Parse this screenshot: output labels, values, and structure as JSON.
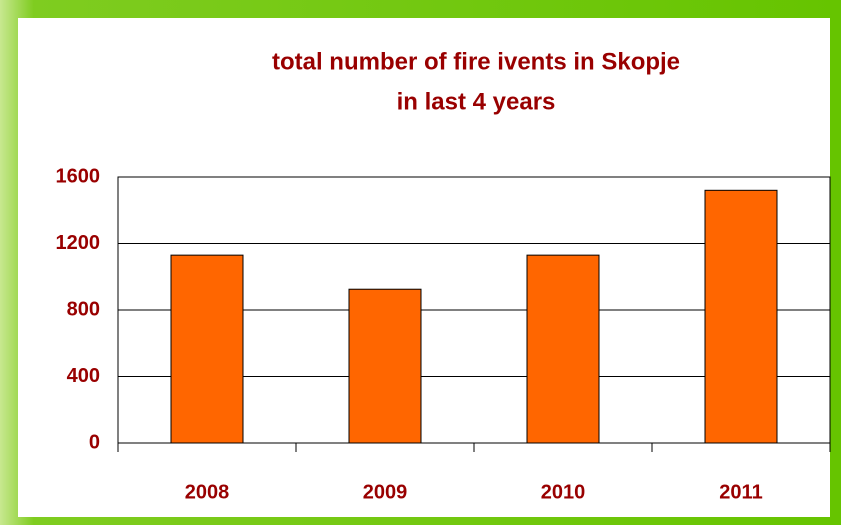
{
  "chart_data": {
    "type": "bar",
    "title": [
      "total number of fire ivents in Skopje",
      "in last 4 years"
    ],
    "categories": [
      "2008",
      "2009",
      "2010",
      "2011"
    ],
    "values": [
      1130,
      925,
      1130,
      1520
    ],
    "color": "#ff6600",
    "ylim": [
      0,
      1600
    ],
    "yticks": [
      0,
      400,
      800,
      1200,
      1600
    ],
    "grid": true
  }
}
